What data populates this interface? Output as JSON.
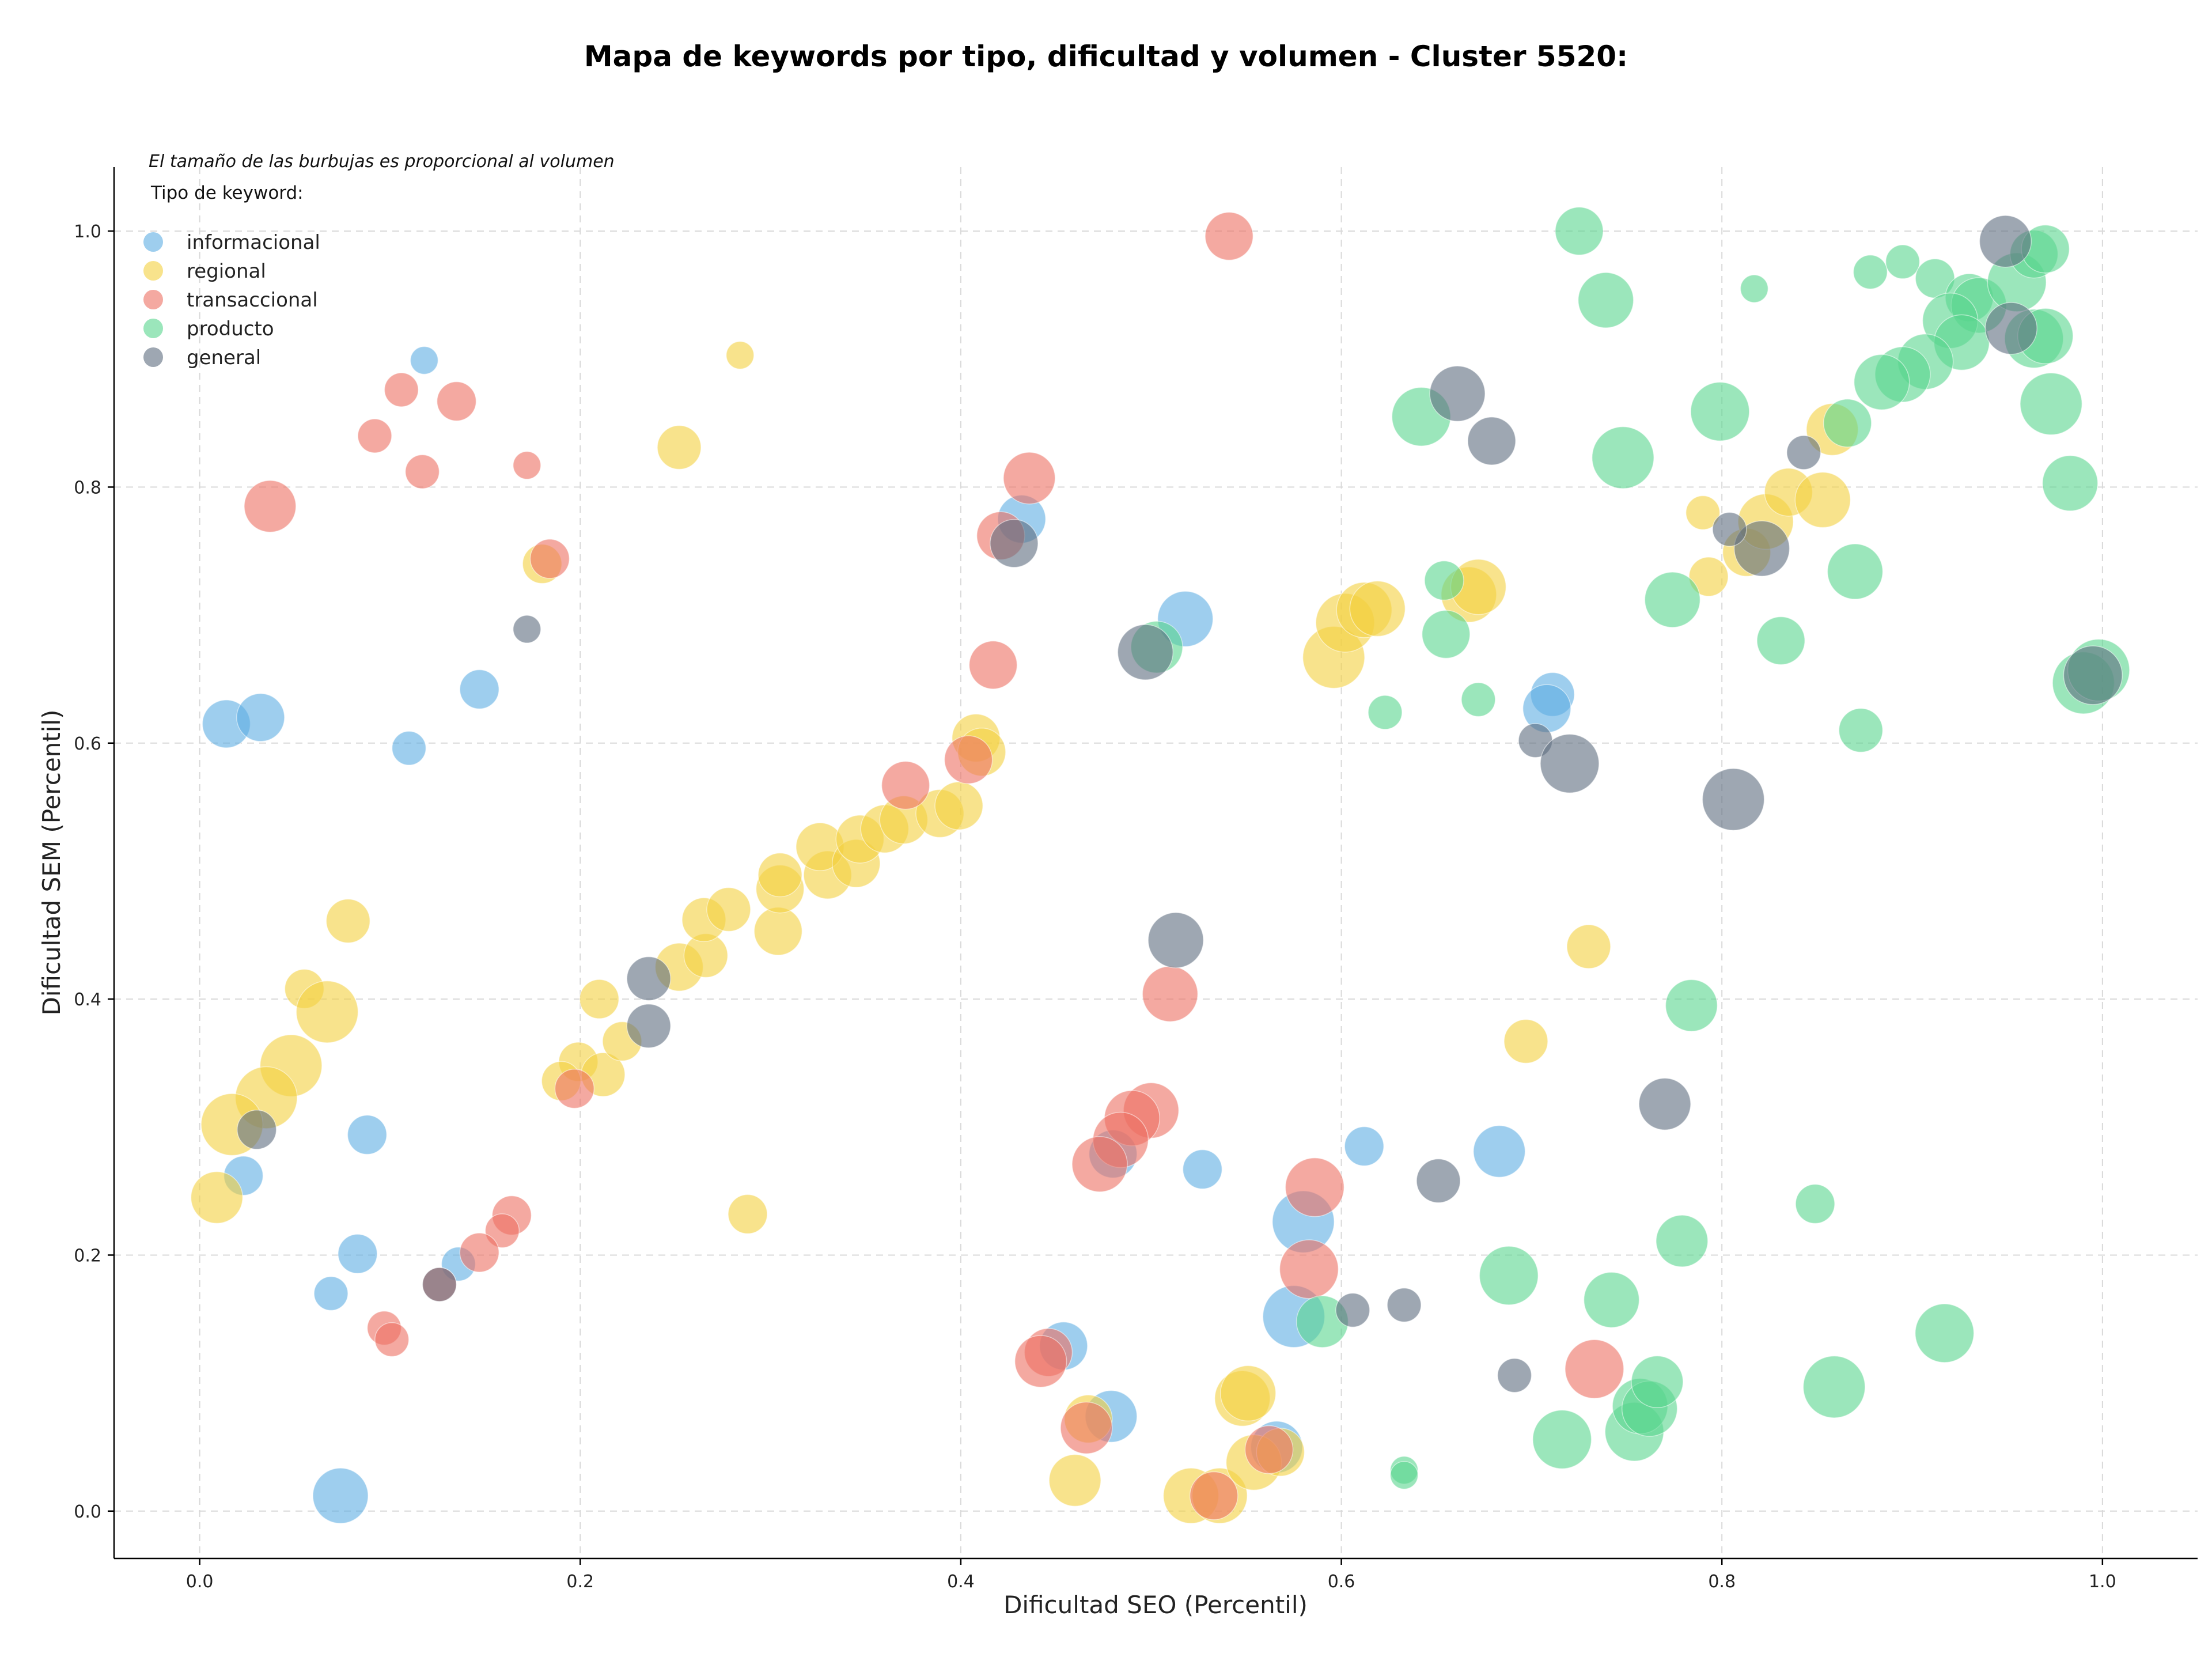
{
  "chart_data": {
    "type": "scatter",
    "title": "Mapa de keywords por tipo, dificultad y volumen - Cluster 5520:",
    "xlabel": "Dificultad SEO (Percentil)",
    "ylabel": "Dificultad SEM (Percentil)",
    "xlim": [
      -0.045,
      1.05
    ],
    "ylim": [
      -0.037,
      1.05
    ],
    "xticks": [
      "0.0",
      "0.2",
      "0.4",
      "0.6",
      "0.8",
      "1.0"
    ],
    "yticks": [
      "0.0",
      "0.2",
      "0.4",
      "0.6",
      "0.8",
      "1.0"
    ],
    "grid": true,
    "note": "El tamaño de las burbujas es proporcional al volumen",
    "legend_title": "Tipo de keyword:",
    "legend_position": "top-left",
    "series": [
      {
        "name": "informacional",
        "color": "#5dade2",
        "points": [
          [
            0.118,
            0.899,
            1
          ],
          [
            0.014,
            0.615,
            3
          ],
          [
            0.032,
            0.62,
            3
          ],
          [
            0.147,
            0.642,
            2
          ],
          [
            0.11,
            0.596,
            1.5
          ],
          [
            0.088,
            0.294,
            2
          ],
          [
            0.023,
            0.262,
            2
          ],
          [
            0.083,
            0.201,
            2
          ],
          [
            0.069,
            0.17,
            1.5
          ],
          [
            0.136,
            0.193,
            1.5
          ],
          [
            0.074,
            0.012,
            4
          ],
          [
            0.432,
            0.775,
            3
          ],
          [
            0.518,
            0.697,
            4
          ],
          [
            0.711,
            0.638,
            2.5
          ],
          [
            0.708,
            0.627,
            3
          ],
          [
            0.612,
            0.285,
            2
          ],
          [
            0.683,
            0.281,
            3.5
          ],
          [
            0.527,
            0.267,
            2
          ],
          [
            0.48,
            0.279,
            3
          ],
          [
            0.58,
            0.226,
            5
          ],
          [
            0.575,
            0.152,
            5
          ],
          [
            0.454,
            0.129,
            3
          ],
          [
            0.479,
            0.074,
            3.5
          ],
          [
            0.566,
            0.05,
            3.5
          ]
        ]
      },
      {
        "name": "regional",
        "color": "#f4d03f",
        "points": [
          [
            0.284,
            0.903,
            1
          ],
          [
            0.252,
            0.831,
            2.5
          ],
          [
            0.18,
            0.74,
            2
          ],
          [
            0.078,
            0.461,
            2.5
          ],
          [
            0.055,
            0.408,
            2
          ],
          [
            0.067,
            0.39,
            5
          ],
          [
            0.048,
            0.348,
            5
          ],
          [
            0.035,
            0.323,
            5
          ],
          [
            0.017,
            0.302,
            5
          ],
          [
            0.009,
            0.245,
            3.5
          ],
          [
            0.21,
            0.4,
            2
          ],
          [
            0.199,
            0.351,
            2
          ],
          [
            0.19,
            0.336,
            2
          ],
          [
            0.212,
            0.341,
            2.5
          ],
          [
            0.222,
            0.367,
            2
          ],
          [
            0.252,
            0.425,
            3
          ],
          [
            0.266,
            0.434,
            2.5
          ],
          [
            0.265,
            0.462,
            2.5
          ],
          [
            0.278,
            0.47,
            2.5
          ],
          [
            0.304,
            0.453,
            3
          ],
          [
            0.305,
            0.486,
            3
          ],
          [
            0.305,
            0.497,
            2.5
          ],
          [
            0.33,
            0.497,
            3
          ],
          [
            0.326,
            0.519,
            3
          ],
          [
            0.345,
            0.506,
            3
          ],
          [
            0.347,
            0.525,
            3
          ],
          [
            0.36,
            0.533,
            3
          ],
          [
            0.37,
            0.54,
            3
          ],
          [
            0.389,
            0.545,
            3
          ],
          [
            0.399,
            0.551,
            3
          ],
          [
            0.408,
            0.604,
            3
          ],
          [
            0.411,
            0.593,
            3
          ],
          [
            0.288,
            0.232,
            2
          ],
          [
            0.46,
            0.024,
            3.5
          ],
          [
            0.467,
            0.072,
            3
          ],
          [
            0.521,
            0.012,
            4
          ],
          [
            0.536,
            0.012,
            4
          ],
          [
            0.548,
            0.088,
            4
          ],
          [
            0.551,
            0.092,
            4
          ],
          [
            0.554,
            0.038,
            4
          ],
          [
            0.568,
            0.046,
            3
          ],
          [
            0.596,
            0.667,
            5
          ],
          [
            0.602,
            0.694,
            4.5
          ],
          [
            0.612,
            0.704,
            4
          ],
          [
            0.619,
            0.705,
            4
          ],
          [
            0.667,
            0.716,
            4
          ],
          [
            0.672,
            0.722,
            4
          ],
          [
            0.73,
            0.441,
            2.5
          ],
          [
            0.697,
            0.367,
            2.5
          ],
          [
            0.79,
            0.78,
            1.5
          ],
          [
            0.793,
            0.73,
            2
          ],
          [
            0.813,
            0.749,
            3
          ],
          [
            0.823,
            0.773,
            4
          ],
          [
            0.835,
            0.796,
            3
          ],
          [
            0.853,
            0.79,
            4
          ],
          [
            0.858,
            0.845,
            3.5
          ]
        ]
      },
      {
        "name": "transaccional",
        "color": "#ec7063",
        "points": [
          [
            0.541,
            0.996,
            3
          ],
          [
            0.106,
            0.876,
            1.5
          ],
          [
            0.135,
            0.867,
            2
          ],
          [
            0.092,
            0.84,
            1.5
          ],
          [
            0.117,
            0.812,
            1.5
          ],
          [
            0.172,
            0.817,
            1
          ],
          [
            0.037,
            0.785,
            3.5
          ],
          [
            0.184,
            0.744,
            2
          ],
          [
            0.197,
            0.33,
            2
          ],
          [
            0.164,
            0.231,
            2
          ],
          [
            0.159,
            0.219,
            1.5
          ],
          [
            0.147,
            0.202,
            2
          ],
          [
            0.126,
            0.177,
            1.5
          ],
          [
            0.097,
            0.143,
            1.5
          ],
          [
            0.101,
            0.134,
            1.5
          ],
          [
            0.436,
            0.807,
            3.5
          ],
          [
            0.421,
            0.762,
            3
          ],
          [
            0.417,
            0.661,
            3
          ],
          [
            0.404,
            0.587,
            3
          ],
          [
            0.371,
            0.567,
            3
          ],
          [
            0.51,
            0.404,
            4
          ],
          [
            0.5,
            0.313,
            4
          ],
          [
            0.49,
            0.307,
            4
          ],
          [
            0.484,
            0.29,
            4
          ],
          [
            0.473,
            0.271,
            4
          ],
          [
            0.586,
            0.253,
            4.5
          ],
          [
            0.583,
            0.189,
            4.5
          ],
          [
            0.446,
            0.124,
            3
          ],
          [
            0.442,
            0.117,
            3.5
          ],
          [
            0.466,
            0.065,
            3.5
          ],
          [
            0.533,
            0.012,
            3
          ],
          [
            0.562,
            0.048,
            3
          ],
          [
            0.733,
            0.111,
            4.5
          ]
        ]
      },
      {
        "name": "producto",
        "color": "#58d68d",
        "points": [
          [
            0.725,
            1.0,
            3
          ],
          [
            0.739,
            0.946,
            4
          ],
          [
            0.642,
            0.855,
            4.5
          ],
          [
            0.748,
            0.823,
            5
          ],
          [
            0.799,
            0.859,
            4.5
          ],
          [
            0.817,
            0.955,
            1
          ],
          [
            0.878,
            0.968,
            1.5
          ],
          [
            0.895,
            0.976,
            1.5
          ],
          [
            0.912,
            0.963,
            2
          ],
          [
            0.93,
            0.948,
            3
          ],
          [
            0.935,
            0.942,
            4
          ],
          [
            0.955,
            0.96,
            4.5
          ],
          [
            0.964,
            0.982,
            3
          ],
          [
            0.97,
            0.986,
            3
          ],
          [
            0.964,
            0.916,
            4.5
          ],
          [
            0.97,
            0.918,
            4
          ],
          [
            0.973,
            0.865,
            5
          ],
          [
            0.983,
            0.803,
            4
          ],
          [
            0.99,
            0.647,
            5
          ],
          [
            0.998,
            0.657,
            5
          ],
          [
            0.92,
            0.93,
            4
          ],
          [
            0.926,
            0.913,
            4
          ],
          [
            0.907,
            0.898,
            4
          ],
          [
            0.895,
            0.888,
            4
          ],
          [
            0.884,
            0.882,
            4
          ],
          [
            0.866,
            0.85,
            3
          ],
          [
            0.87,
            0.734,
            4
          ],
          [
            0.873,
            0.61,
            2.5
          ],
          [
            0.831,
            0.68,
            3
          ],
          [
            0.774,
            0.712,
            4
          ],
          [
            0.654,
            0.727,
            2
          ],
          [
            0.655,
            0.685,
            3
          ],
          [
            0.672,
            0.634,
            1.5
          ],
          [
            0.623,
            0.624,
            1.5
          ],
          [
            0.503,
            0.675,
            3.5
          ],
          [
            0.784,
            0.395,
            3.5
          ],
          [
            0.779,
            0.211,
            3.5
          ],
          [
            0.849,
            0.24,
            2
          ],
          [
            0.688,
            0.184,
            4.5
          ],
          [
            0.742,
            0.165,
            4
          ],
          [
            0.59,
            0.148,
            3.5
          ],
          [
            0.633,
            0.032,
            1
          ],
          [
            0.633,
            0.028,
            1
          ],
          [
            0.716,
            0.056,
            4.5
          ],
          [
            0.754,
            0.062,
            4.5
          ],
          [
            0.757,
            0.082,
            4
          ],
          [
            0.762,
            0.08,
            4
          ],
          [
            0.766,
            0.101,
            3.5
          ],
          [
            0.859,
            0.097,
            5
          ],
          [
            0.917,
            0.139,
            4.5
          ]
        ]
      },
      {
        "name": "general",
        "color": "#5d6d7e",
        "points": [
          [
            0.172,
            0.689,
            1
          ],
          [
            0.236,
            0.416,
            2.5
          ],
          [
            0.236,
            0.379,
            2.5
          ],
          [
            0.03,
            0.298,
            2
          ],
          [
            0.126,
            0.177,
            1.5
          ],
          [
            0.428,
            0.756,
            3
          ],
          [
            0.497,
            0.671,
            4
          ],
          [
            0.513,
            0.446,
            4
          ],
          [
            0.661,
            0.873,
            4
          ],
          [
            0.679,
            0.836,
            3
          ],
          [
            0.702,
            0.602,
            1.5
          ],
          [
            0.72,
            0.584,
            4.5
          ],
          [
            0.806,
            0.556,
            5
          ],
          [
            0.821,
            0.752,
            4
          ],
          [
            0.804,
            0.767,
            1.5
          ],
          [
            0.843,
            0.827,
            1.5
          ],
          [
            0.77,
            0.318,
            3.5
          ],
          [
            0.651,
            0.258,
            2.5
          ],
          [
            0.606,
            0.157,
            1.5
          ],
          [
            0.633,
            0.161,
            1.5
          ],
          [
            0.691,
            0.106,
            1.5
          ],
          [
            0.949,
            0.992,
            3.5
          ],
          [
            0.952,
            0.924,
            3.5
          ],
          [
            0.995,
            0.653,
            4.5
          ]
        ]
      }
    ]
  }
}
